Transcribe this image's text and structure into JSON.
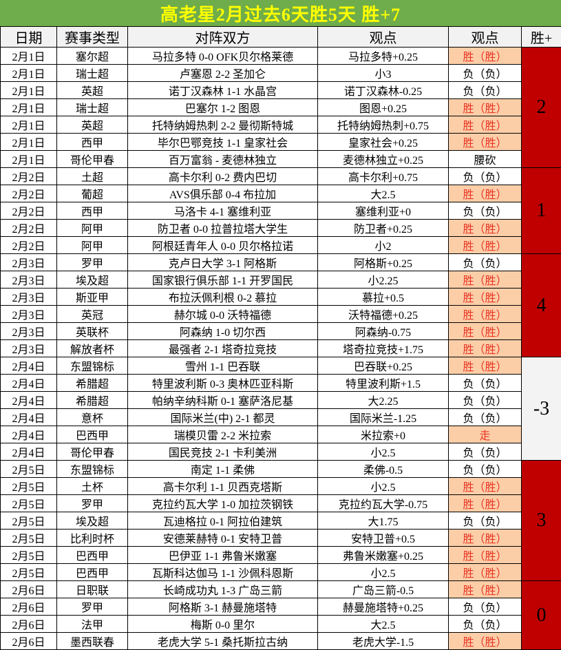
{
  "title": "高老星2月过去6天胜5天 胜+7",
  "colors": {
    "title_bg": "#6FAC4B",
    "title_text": "#FFFF00",
    "header_bg": "#F2F2F2",
    "win_bg": "#FBCEA8",
    "win_text": "#EA3423",
    "plus_red_bg": "#C00000",
    "plus_light_bg": "#F3F3F3"
  },
  "columns": [
    "日期",
    "赛事类型",
    "对阵双方",
    "观点",
    "观点",
    "胜+"
  ],
  "rows": [
    {
      "date": "2月1日",
      "league": "塞尔超",
      "match": "马拉多特 0-0 OFK贝尔格莱德",
      "view": "马拉多特+0.25",
      "result": "胜（胜）",
      "result_type": "win"
    },
    {
      "date": "2月1日",
      "league": "瑞士超",
      "match": "卢塞恩 2-2 圣加仑",
      "view": "小3",
      "result": "负（负）",
      "result_type": "loss"
    },
    {
      "date": "2月1日",
      "league": "英超",
      "match": "诺丁汉森林 1-1 水晶宫",
      "view": "诺丁汉森林-0.25",
      "result": "负（负）",
      "result_type": "loss"
    },
    {
      "date": "2月1日",
      "league": "瑞士超",
      "match": "巴塞尔 1-2 图恩",
      "view": "图恩+0.25",
      "result": "胜（胜）",
      "result_type": "win"
    },
    {
      "date": "2月1日",
      "league": "英超",
      "match": "托特纳姆热刺 2-2 曼彻斯特城",
      "view": "托特纳姆热刺+0.75",
      "result": "胜（胜）",
      "result_type": "win"
    },
    {
      "date": "2月1日",
      "league": "西甲",
      "match": "毕尔巴鄂竞技 1-1 皇家社会",
      "view": "皇家社会+0.25",
      "result": "胜（胜）",
      "result_type": "win"
    },
    {
      "date": "2月1日",
      "league": "哥伦甲春",
      "match": "百万富翁 - 麦德林独立",
      "view": "麦德林独立+0.25",
      "result": "腰砍",
      "result_type": "cut"
    },
    {
      "date": "2月2日",
      "league": "土超",
      "match": "高卡尔利 0-2 费内巴切",
      "view": "高卡尔利+0.75",
      "result": "负（负）",
      "result_type": "loss"
    },
    {
      "date": "2月2日",
      "league": "葡超",
      "match": "AVS俱乐部 0-4 布拉加",
      "view": "大2.5",
      "result": "胜（胜）",
      "result_type": "win"
    },
    {
      "date": "2月2日",
      "league": "西甲",
      "match": "马洛卡 4-1 塞维利亚",
      "view": "塞维利亚+0",
      "result": "负（负）",
      "result_type": "loss"
    },
    {
      "date": "2月2日",
      "league": "阿甲",
      "match": "防卫者 0-0 拉普拉塔大学生",
      "view": "防卫者+0.25",
      "result": "胜（胜）",
      "result_type": "win"
    },
    {
      "date": "2月2日",
      "league": "阿甲",
      "match": "阿根廷青年人 0-0 贝尔格拉诺",
      "view": "小2",
      "result": "胜（胜）",
      "result_type": "win"
    },
    {
      "date": "2月3日",
      "league": "罗甲",
      "match": "克卢日大学 3-1 阿格斯",
      "view": "阿格斯+0.25",
      "result": "负（负）",
      "result_type": "loss"
    },
    {
      "date": "2月3日",
      "league": "埃及超",
      "match": "国家银行俱乐部 1-1 开罗国民",
      "view": "小2.25",
      "result": "胜（胜）",
      "result_type": "win"
    },
    {
      "date": "2月3日",
      "league": "斯亚甲",
      "match": "布拉沃佩利根 0-2 慕拉",
      "view": "慕拉+0.5",
      "result": "胜（胜）",
      "result_type": "win"
    },
    {
      "date": "2月3日",
      "league": "英冠",
      "match": "赫尔城 0-0 沃特福德",
      "view": "沃特福德+0.25",
      "result": "胜（胜）",
      "result_type": "win"
    },
    {
      "date": "2月3日",
      "league": "英联杯",
      "match": "阿森纳 1-0 切尔西",
      "view": "阿森纳-0.75",
      "result": "胜（胜）",
      "result_type": "win"
    },
    {
      "date": "2月3日",
      "league": "解放者杯",
      "match": "最强者 2-1 塔奇拉竞技",
      "view": "塔奇拉竞技+1.75",
      "result": "胜（胜）",
      "result_type": "win"
    },
    {
      "date": "2月4日",
      "league": "东盟锦标",
      "match": "雪州 1-1 巴吞联",
      "view": "巴吞联+0.25",
      "result": "胜（胜）",
      "result_type": "win"
    },
    {
      "date": "2月4日",
      "league": "希腊超",
      "match": "特里波利斯 0-3 奥林匹亚科斯",
      "view": "特里波利斯+1.5",
      "result": "负（负）",
      "result_type": "loss"
    },
    {
      "date": "2月4日",
      "league": "希腊超",
      "match": "帕纳辛纳科斯 0-1 塞萨洛尼基",
      "view": "大2.25",
      "result": "负（负）",
      "result_type": "loss"
    },
    {
      "date": "2月4日",
      "league": "意杯",
      "match": "国际米兰(中) 2-1 都灵",
      "view": "国际米兰-1.25",
      "result": "负（负）",
      "result_type": "loss"
    },
    {
      "date": "2月4日",
      "league": "巴西甲",
      "match": "瑞模贝雷 2-2 米拉索",
      "view": "米拉索+0",
      "result": "走",
      "result_type": "push"
    },
    {
      "date": "2月4日",
      "league": "哥伦甲春",
      "match": "国民竞技 2-1 卡利美洲",
      "view": "小2.5",
      "result": "负（负）",
      "result_type": "loss"
    },
    {
      "date": "2月5日",
      "league": "东盟锦标",
      "match": "南定 1-1 柔佛",
      "view": "柔佛-0.5",
      "result": "负（负）",
      "result_type": "loss"
    },
    {
      "date": "2月5日",
      "league": "土杯",
      "match": "高卡尔利 1-1 贝西克塔斯",
      "view": "小2.5",
      "result": "胜（胜）",
      "result_type": "win"
    },
    {
      "date": "2月5日",
      "league": "罗甲",
      "match": "克拉约瓦大学 1-0 加拉茨钢铁",
      "view": "克拉约瓦大学-0.75",
      "result": "胜（胜）",
      "result_type": "win"
    },
    {
      "date": "2月5日",
      "league": "埃及超",
      "match": "瓦迪格拉 0-1 阿拉伯建筑",
      "view": "大1.75",
      "result": "负（负）",
      "result_type": "loss"
    },
    {
      "date": "2月5日",
      "league": "比利时杯",
      "match": "安德莱赫特 0-1 安特卫普",
      "view": "安特卫普+0.5",
      "result": "胜（胜）",
      "result_type": "win"
    },
    {
      "date": "2月5日",
      "league": "巴西甲",
      "match": "巴伊亚 1-1 弗鲁米嫩塞",
      "view": "弗鲁米嫩塞+0.25",
      "result": "胜（胜）",
      "result_type": "win"
    },
    {
      "date": "2月5日",
      "league": "巴西甲",
      "match": "瓦斯科达伽马 1-1 沙佩科恩斯",
      "view": "小2.5",
      "result": "胜（胜）",
      "result_type": "win"
    },
    {
      "date": "2月6日",
      "league": "日职联",
      "match": "长崎成功丸 1-3 广岛三箭",
      "view": "广岛三箭-0.5",
      "result": "胜（胜）",
      "result_type": "win"
    },
    {
      "date": "2月6日",
      "league": "罗甲",
      "match": "阿格斯 3-1 赫曼施塔特",
      "view": "赫曼施塔特+0.25",
      "result": "负（负）",
      "result_type": "loss"
    },
    {
      "date": "2月6日",
      "league": "法甲",
      "match": "梅斯 0-0 里尔",
      "view": "大2.5",
      "result": "负（负）",
      "result_type": "loss"
    },
    {
      "date": "2月6日",
      "league": "墨西联春",
      "match": "老虎大学 5-1 桑托斯拉古纳",
      "view": "老虎大学-1.5",
      "result": "胜（胜）",
      "result_type": "win"
    }
  ],
  "win_plus_groups": [
    {
      "date": "2月1日",
      "row_span": 7,
      "value": "2",
      "highlight": "red"
    },
    {
      "date": "2月2日",
      "row_span": 5,
      "value": "1",
      "highlight": "red"
    },
    {
      "date": "2月3日",
      "row_span": 6,
      "value": "4",
      "highlight": "red"
    },
    {
      "date": "2月4日",
      "row_span": 6,
      "value": "-3",
      "highlight": "light"
    },
    {
      "date": "2月5日",
      "row_span": 7,
      "value": "3",
      "highlight": "red"
    },
    {
      "date": "2月6日",
      "row_span": 4,
      "value": "0",
      "highlight": "red"
    }
  ]
}
